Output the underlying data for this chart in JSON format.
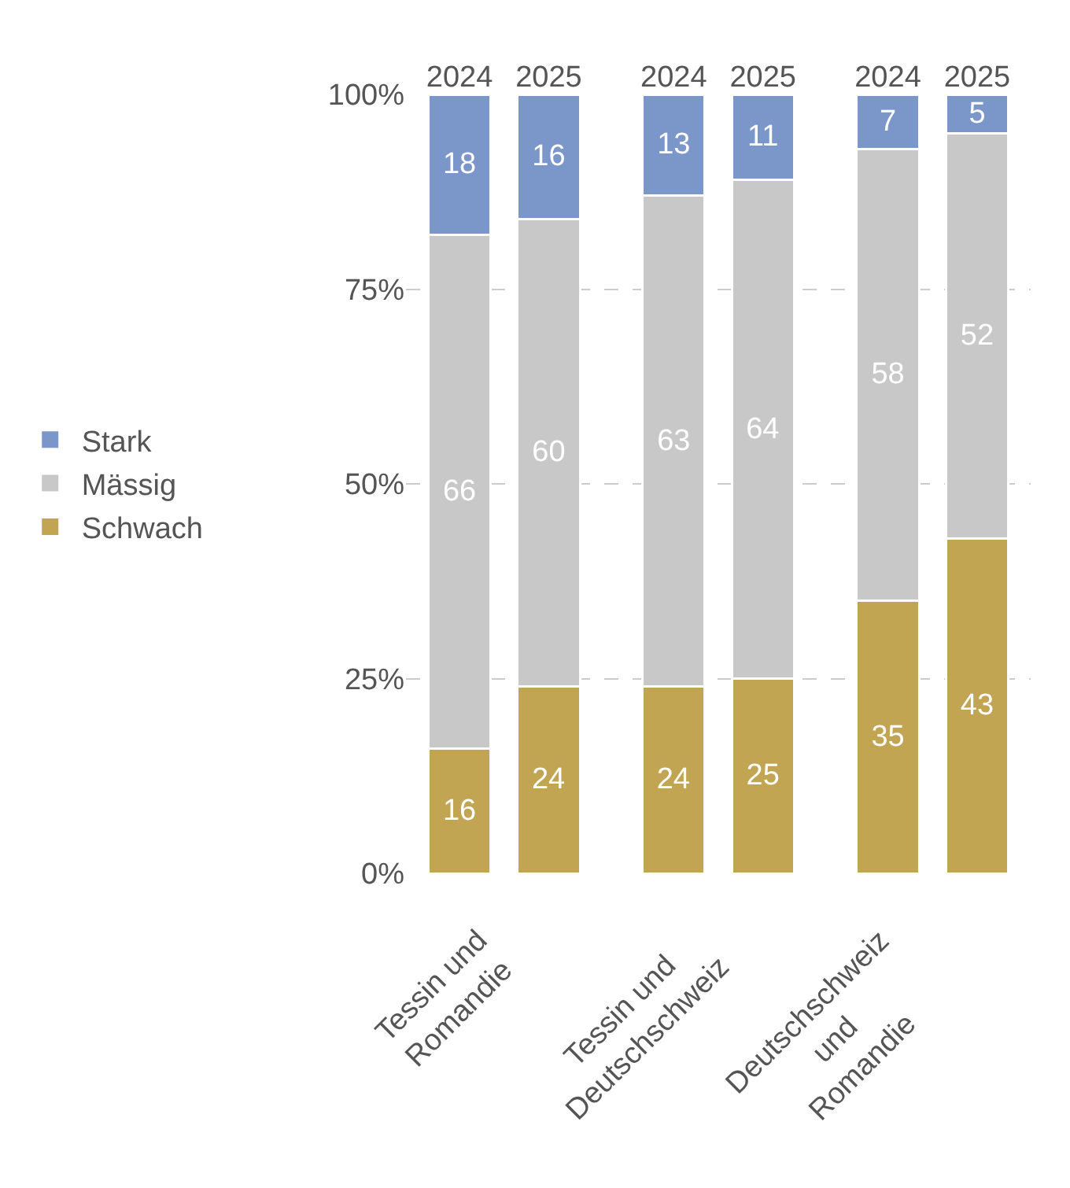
{
  "chart_data": {
    "type": "bar",
    "stacked": true,
    "categories": [
      "2024",
      "2025",
      "2024",
      "2025",
      "2024",
      "2025"
    ],
    "series": [
      {
        "name": "Schwach",
        "color": "#c2a553",
        "values": [
          16,
          24,
          24,
          25,
          35,
          43
        ]
      },
      {
        "name": "Mässig",
        "color": "#c8c8c8",
        "values": [
          66,
          60,
          63,
          64,
          58,
          52
        ]
      },
      {
        "name": "Stark",
        "color": "#7b96c8",
        "values": [
          18,
          16,
          13,
          11,
          7,
          5
        ]
      }
    ],
    "ylim": [
      0,
      100
    ],
    "yticks": [
      {
        "value": 0,
        "label": "0%"
      },
      {
        "value": 25,
        "label": "25%"
      },
      {
        "value": 50,
        "label": "50%"
      },
      {
        "value": 75,
        "label": "75%"
      },
      {
        "value": 100,
        "label": "100%"
      }
    ],
    "annotations": [
      "Tessin und\nRomandie",
      "Tessin und\nDeutschschweiz",
      "Deutschschweiz\nund\nRomandie"
    ],
    "data_labels": true,
    "grid": "y",
    "legend": "left"
  }
}
